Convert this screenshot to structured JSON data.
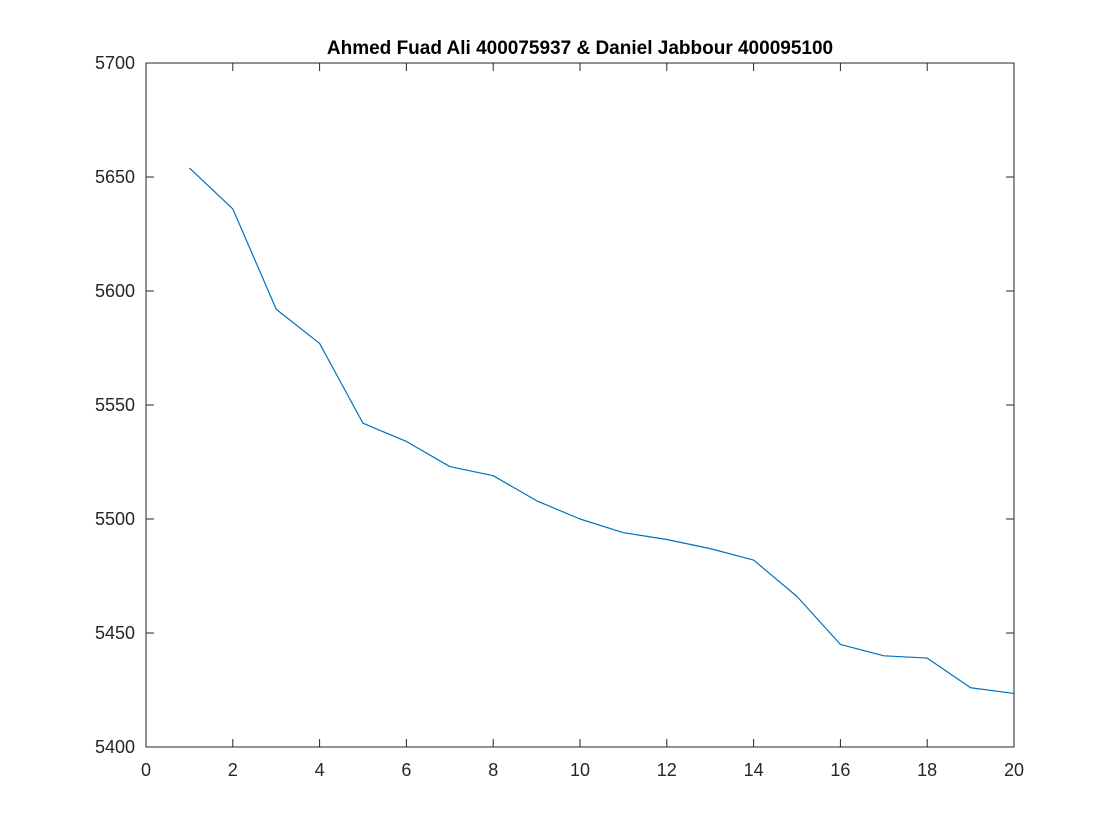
{
  "chart_data": {
    "type": "line",
    "title": "Ahmed Fuad Ali 400075937 & Daniel Jabbour 400095100",
    "xlabel": "",
    "ylabel": "",
    "xlim": [
      0,
      20
    ],
    "ylim": [
      5400,
      5700
    ],
    "x_ticks": [
      "0",
      "2",
      "4",
      "6",
      "8",
      "10",
      "12",
      "14",
      "16",
      "18",
      "20"
    ],
    "y_ticks": [
      "5400",
      "5450",
      "5500",
      "5550",
      "5600",
      "5650",
      "5700"
    ],
    "grid": false,
    "series": [
      {
        "color": "#0072BD",
        "x": [
          1,
          2,
          3,
          4,
          5,
          6,
          7,
          8,
          9,
          10,
          11,
          12,
          13,
          14,
          15,
          16,
          17,
          18,
          19,
          20
        ],
        "y": [
          5654,
          5636,
          5592,
          5577,
          5542,
          5534,
          5523,
          5519,
          5508,
          5500,
          5494,
          5491,
          5487,
          5482,
          5466,
          5445,
          5440,
          5439,
          5426,
          5423.5
        ]
      }
    ]
  }
}
